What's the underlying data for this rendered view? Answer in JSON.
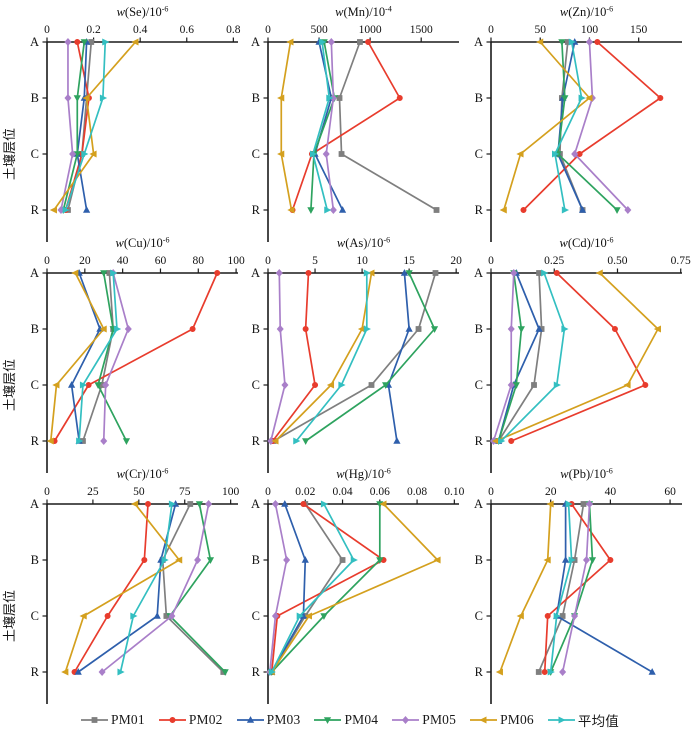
{
  "figure": {
    "y_axis_label": "土壤层位",
    "categories": [
      "A",
      "B",
      "C",
      "R"
    ]
  },
  "legend": {
    "items": [
      {
        "label": "PM01",
        "color": "#7F7F7F",
        "marker": "square"
      },
      {
        "label": "PM02",
        "color": "#E83C2D",
        "marker": "circle"
      },
      {
        "label": "PM03",
        "color": "#2E5FAC",
        "marker": "triangle-up"
      },
      {
        "label": "PM04",
        "color": "#2EA35F",
        "marker": "triangle-down"
      },
      {
        "label": "PM05",
        "color": "#A97FC9",
        "marker": "diamond"
      },
      {
        "label": "PM06",
        "color": "#D4A01E",
        "marker": "triangle-left"
      },
      {
        "label": "平均值",
        "color": "#33BFC1",
        "marker": "triangle-right"
      }
    ]
  },
  "chart_data": [
    {
      "type": "line",
      "element": "Se",
      "title": "w(Se)/10⁻⁶",
      "unit_exponent": "-6",
      "xlim": [
        0,
        0.82
      ],
      "xticks": [
        0,
        0.2,
        0.4,
        0.6,
        0.8
      ],
      "xtick_labels": [
        "0",
        "0.2",
        "0.4",
        "0.6",
        "0.8"
      ],
      "categories": [
        "A",
        "B",
        "C",
        "R"
      ],
      "series": [
        {
          "name": "PM01",
          "values": [
            0.19,
            0.17,
            0.15,
            0.09
          ]
        },
        {
          "name": "PM02",
          "values": [
            0.13,
            0.18,
            0.15,
            0.08
          ]
        },
        {
          "name": "PM03",
          "values": [
            0.17,
            0.16,
            0.13,
            0.17
          ]
        },
        {
          "name": "PM04",
          "values": [
            0.16,
            0.13,
            0.13,
            0.07
          ]
        },
        {
          "name": "PM05",
          "values": [
            0.09,
            0.09,
            0.11,
            0.06
          ]
        },
        {
          "name": "PM06",
          "values": [
            0.38,
            0.17,
            0.2,
            0.03
          ]
        },
        {
          "name": "平均值",
          "values": [
            0.25,
            0.24,
            0.16,
            0.08
          ]
        }
      ]
    },
    {
      "type": "line",
      "element": "Mn",
      "title": "w(Mn)/10⁻⁴",
      "unit_exponent": "-4",
      "xlim": [
        0,
        1870
      ],
      "xticks": [
        0,
        500,
        1000,
        1500
      ],
      "xtick_labels": [
        "0",
        "500",
        "1000",
        "1500"
      ],
      "categories": [
        "A",
        "B",
        "C",
        "R"
      ],
      "series": [
        {
          "name": "PM01",
          "values": [
            900,
            700,
            720,
            1650
          ]
        },
        {
          "name": "PM02",
          "values": [
            980,
            1290,
            430,
            240
          ]
        },
        {
          "name": "PM03",
          "values": [
            500,
            620,
            460,
            730
          ]
        },
        {
          "name": "PM04",
          "values": [
            550,
            650,
            450,
            420
          ]
        },
        {
          "name": "PM05",
          "values": [
            620,
            640,
            570,
            640
          ]
        },
        {
          "name": "PM06",
          "values": [
            220,
            130,
            130,
            230
          ]
        },
        {
          "name": "平均值",
          "values": [
            530,
            600,
            440,
            580
          ]
        }
      ]
    },
    {
      "type": "line",
      "element": "Zn",
      "title": "w(Zn)/10⁻⁶",
      "unit_exponent": "-6",
      "xlim": [
        0,
        194
      ],
      "xticks": [
        0,
        50,
        100,
        150
      ],
      "xtick_labels": [
        "0",
        "50",
        "100",
        "150"
      ],
      "categories": [
        "A",
        "B",
        "C",
        "R"
      ],
      "series": [
        {
          "name": "PM01",
          "values": [
            78,
            72,
            70,
            93
          ]
        },
        {
          "name": "PM02",
          "values": [
            108,
            172,
            90,
            33
          ]
        },
        {
          "name": "PM03",
          "values": [
            85,
            73,
            68,
            93
          ]
        },
        {
          "name": "PM04",
          "values": [
            72,
            75,
            68,
            128
          ]
        },
        {
          "name": "PM05",
          "values": [
            100,
            103,
            85,
            139
          ]
        },
        {
          "name": "PM06",
          "values": [
            50,
            100,
            30,
            13
          ]
        },
        {
          "name": "平均值",
          "values": [
            82,
            92,
            65,
            75
          ]
        }
      ]
    },
    {
      "type": "line",
      "element": "Cu",
      "title": "w(Cu)/10⁻⁶",
      "unit_exponent": "-6",
      "xlim": [
        0,
        101
      ],
      "xticks": [
        0,
        20,
        40,
        60,
        80,
        100
      ],
      "xtick_labels": [
        "0",
        "20",
        "40",
        "60",
        "80",
        "100"
      ],
      "categories": [
        "A",
        "B",
        "C",
        "R"
      ],
      "series": [
        {
          "name": "PM01",
          "values": [
            33,
            35,
            29,
            19
          ]
        },
        {
          "name": "PM02",
          "values": [
            90,
            77,
            22,
            4
          ]
        },
        {
          "name": "PM03",
          "values": [
            17,
            28,
            13,
            17
          ]
        },
        {
          "name": "PM04",
          "values": [
            30,
            35,
            27,
            42
          ]
        },
        {
          "name": "PM05",
          "values": [
            35,
            43,
            31,
            30
          ]
        },
        {
          "name": "PM06",
          "values": [
            15,
            30,
            5,
            2
          ]
        },
        {
          "name": "平均值",
          "values": [
            35,
            37,
            19,
            17
          ]
        }
      ]
    },
    {
      "type": "line",
      "element": "As",
      "title": "w(As)/10⁻⁶",
      "unit_exponent": "-6",
      "xlim": [
        0,
        20.3
      ],
      "xticks": [
        0,
        5,
        10,
        15,
        20
      ],
      "xtick_labels": [
        "0",
        "5",
        "10",
        "15",
        "20"
      ],
      "categories": [
        "A",
        "B",
        "C",
        "R"
      ],
      "series": [
        {
          "name": "PM01",
          "values": [
            17.8,
            16.0,
            11.0,
            0.6
          ]
        },
        {
          "name": "PM02",
          "values": [
            4.3,
            4.0,
            5.0,
            0.5
          ]
        },
        {
          "name": "PM03",
          "values": [
            14.5,
            15.0,
            12.8,
            13.7
          ]
        },
        {
          "name": "PM04",
          "values": [
            15.0,
            17.7,
            12.5,
            4.0
          ]
        },
        {
          "name": "PM05",
          "values": [
            1.2,
            1.3,
            1.8,
            0.3
          ]
        },
        {
          "name": "PM06",
          "values": [
            11.0,
            10.0,
            6.7,
            0.8
          ]
        },
        {
          "name": "平均值",
          "values": [
            10.5,
            10.5,
            7.8,
            3.0
          ]
        }
      ]
    },
    {
      "type": "line",
      "element": "Cd",
      "title": "w(Cd)/10⁻⁶",
      "unit_exponent": "-6",
      "xlim": [
        0,
        0.755
      ],
      "xticks": [
        0,
        0.25,
        0.5,
        0.75
      ],
      "xtick_labels": [
        "0",
        "0.25",
        "0.50",
        "0.75"
      ],
      "categories": [
        "A",
        "B",
        "C",
        "R"
      ],
      "series": [
        {
          "name": "PM01",
          "values": [
            0.19,
            0.2,
            0.17,
            0.03
          ]
        },
        {
          "name": "PM02",
          "values": [
            0.26,
            0.49,
            0.61,
            0.08
          ]
        },
        {
          "name": "PM03",
          "values": [
            0.1,
            0.19,
            0.09,
            0.03
          ]
        },
        {
          "name": "PM04",
          "values": [
            0.09,
            0.12,
            0.1,
            0.03
          ]
        },
        {
          "name": "PM05",
          "values": [
            0.09,
            0.08,
            0.08,
            0.01
          ]
        },
        {
          "name": "PM06",
          "values": [
            0.43,
            0.66,
            0.54,
            0.02
          ]
        },
        {
          "name": "平均值",
          "values": [
            0.21,
            0.29,
            0.26,
            0.04
          ]
        }
      ]
    },
    {
      "type": "line",
      "element": "Cr",
      "title": "w(Cr)/10⁻⁶",
      "unit_exponent": "-6",
      "xlim": [
        0,
        104
      ],
      "xticks": [
        0,
        25,
        50,
        75,
        100
      ],
      "xtick_labels": [
        "0",
        "25",
        "50",
        "75",
        "100"
      ],
      "categories": [
        "A",
        "B",
        "C",
        "R"
      ],
      "series": [
        {
          "name": "PM01",
          "values": [
            78,
            63,
            65,
            96
          ]
        },
        {
          "name": "PM02",
          "values": [
            55,
            53,
            33,
            15
          ]
        },
        {
          "name": "PM03",
          "values": [
            70,
            62,
            60,
            17
          ]
        },
        {
          "name": "PM04",
          "values": [
            83,
            89,
            67,
            97
          ]
        },
        {
          "name": "PM05",
          "values": [
            88,
            82,
            68,
            30
          ]
        },
        {
          "name": "PM06",
          "values": [
            48,
            72,
            20,
            10
          ]
        },
        {
          "name": "平均值",
          "values": [
            68,
            64,
            47,
            40
          ]
        }
      ]
    },
    {
      "type": "line",
      "element": "Hg",
      "title": "w(Hg)/10⁻⁶",
      "unit_exponent": "-6",
      "xlim": [
        0,
        0.1025
      ],
      "xticks": [
        0,
        0.02,
        0.04,
        0.06,
        0.08,
        0.1
      ],
      "xtick_labels": [
        "0",
        "0.02",
        "0.04",
        "0.06",
        "0.08",
        "0.10"
      ],
      "categories": [
        "A",
        "B",
        "C",
        "R"
      ],
      "series": [
        {
          "name": "PM01",
          "values": [
            0.02,
            0.04,
            0.02,
            0.002
          ]
        },
        {
          "name": "PM02",
          "values": [
            0.019,
            0.062,
            0.005,
            0.002
          ]
        },
        {
          "name": "PM03",
          "values": [
            0.009,
            0.02,
            0.019,
            0.002
          ]
        },
        {
          "name": "PM04",
          "values": [
            0.06,
            0.06,
            0.03,
            0.002
          ]
        },
        {
          "name": "PM05",
          "values": [
            0.004,
            0.01,
            0.004,
            0.001
          ]
        },
        {
          "name": "PM06",
          "values": [
            0.062,
            0.091,
            0.022,
            0.002
          ]
        },
        {
          "name": "平均值",
          "values": [
            0.03,
            0.046,
            0.017,
            0.002
          ]
        }
      ]
    },
    {
      "type": "line",
      "element": "Pb",
      "title": "w(Pb)/10⁻⁶",
      "unit_exponent": "-6",
      "xlim": [
        0,
        64
      ],
      "xticks": [
        0,
        20,
        40,
        60
      ],
      "xtick_labels": [
        "0",
        "20",
        "40",
        "60"
      ],
      "categories": [
        "A",
        "B",
        "C",
        "R"
      ],
      "series": [
        {
          "name": "PM01",
          "values": [
            31,
            28,
            24,
            16
          ]
        },
        {
          "name": "PM02",
          "values": [
            27,
            40,
            19,
            18
          ]
        },
        {
          "name": "PM03",
          "values": [
            25,
            25,
            22,
            54
          ]
        },
        {
          "name": "PM04",
          "values": [
            33,
            34,
            28,
            20
          ]
        },
        {
          "name": "PM05",
          "values": [
            33,
            32,
            28,
            24
          ]
        },
        {
          "name": "PM06",
          "values": [
            20,
            19,
            10,
            3
          ]
        },
        {
          "name": "平均值",
          "values": [
            26,
            27,
            22,
            20
          ]
        }
      ]
    }
  ]
}
